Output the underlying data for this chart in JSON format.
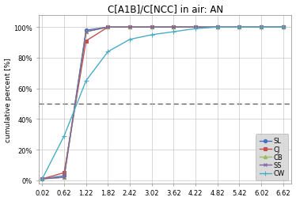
{
  "title": "C[A1B]/C[NCC] in air: AN",
  "ylabel": "cumulative percent [%]",
  "x_ticks": [
    0.02,
    0.62,
    1.22,
    1.82,
    2.42,
    3.02,
    3.62,
    4.22,
    4.82,
    5.42,
    6.02,
    6.62
  ],
  "y_ticks": [
    0.0,
    0.2,
    0.4,
    0.6,
    0.8,
    1.0
  ],
  "y_tick_labels": [
    "0%",
    "20%",
    "40%",
    "60%",
    "80%",
    "100%"
  ],
  "dashed_line_y": 0.5,
  "series": [
    {
      "name": "SL",
      "color": "#4472C4",
      "marker": "o",
      "markersize": 3,
      "x": [
        0.02,
        0.62,
        1.22,
        1.82,
        2.42,
        3.02,
        3.62,
        4.22,
        4.82,
        5.42,
        6.02,
        6.62
      ],
      "y": [
        0.01,
        0.03,
        0.98,
        1.0,
        1.0,
        1.0,
        1.0,
        1.0,
        1.0,
        1.0,
        1.0,
        1.0
      ]
    },
    {
      "name": "CJ",
      "color": "#C0504D",
      "marker": "s",
      "markersize": 3,
      "x": [
        0.02,
        0.62,
        1.22,
        1.82,
        2.42,
        3.02,
        3.62,
        4.22,
        4.82,
        5.42,
        6.02,
        6.62
      ],
      "y": [
        0.01,
        0.05,
        0.91,
        1.0,
        1.0,
        1.0,
        1.0,
        1.0,
        1.0,
        1.0,
        1.0,
        1.0
      ]
    },
    {
      "name": "CB",
      "color": "#9BBB59",
      "marker": "^",
      "markersize": 3,
      "x": [
        0.02,
        0.62,
        1.22,
        1.82,
        2.42,
        3.02,
        3.62,
        4.22,
        4.82,
        5.42,
        6.02,
        6.62
      ],
      "y": [
        0.01,
        0.02,
        0.97,
        1.0,
        1.0,
        1.0,
        1.0,
        1.0,
        1.0,
        1.0,
        1.0,
        1.0
      ]
    },
    {
      "name": "SS",
      "color": "#8064A2",
      "marker": "x",
      "markersize": 3,
      "x": [
        0.02,
        0.62,
        1.22,
        1.82,
        2.42,
        3.02,
        3.62,
        4.22,
        4.82,
        5.42,
        6.02,
        6.62
      ],
      "y": [
        0.01,
        0.02,
        0.97,
        1.0,
        1.0,
        1.0,
        1.0,
        1.0,
        1.0,
        1.0,
        1.0,
        1.0
      ]
    },
    {
      "name": "CW",
      "color": "#4BACC6",
      "marker": "+",
      "markersize": 4,
      "x": [
        0.02,
        0.62,
        1.22,
        1.82,
        2.42,
        3.02,
        3.62,
        4.22,
        4.82,
        5.42,
        6.02,
        6.62
      ],
      "y": [
        0.01,
        0.29,
        0.65,
        0.84,
        0.92,
        0.95,
        0.97,
        0.99,
        1.0,
        1.0,
        1.0,
        1.0
      ]
    }
  ],
  "ylim": [
    -0.02,
    1.08
  ],
  "xlim": [
    -0.08,
    6.85
  ],
  "bg_color": "#FFFFFF",
  "grid_color": "#C8C8C8",
  "title_fontsize": 8.5,
  "axis_fontsize": 6.5,
  "tick_fontsize": 6.0,
  "legend_fontsize": 6.0,
  "linewidth": 1.0
}
